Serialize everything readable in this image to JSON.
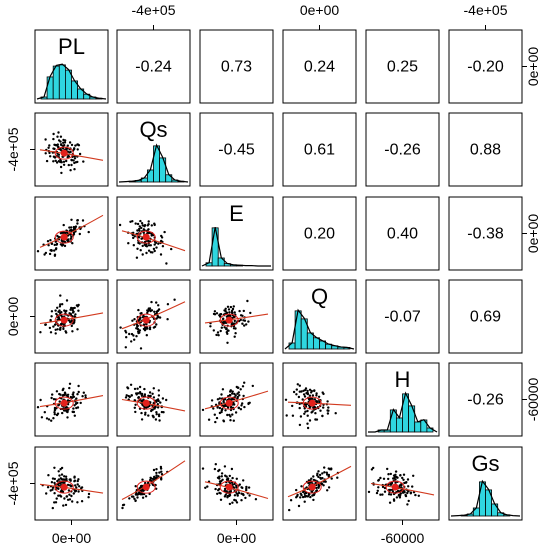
{
  "chart_data": {
    "type": "scatter",
    "layout": "pairs-panel matrix (histograms on diagonal, scatter plots with loess lines below, correlation coefficients above)",
    "variables": [
      "PL",
      "Qs",
      "E",
      "Q",
      "H",
      "Gs"
    ],
    "correlations": [
      {
        "row": 0,
        "col": 1,
        "value": "-0.24"
      },
      {
        "row": 0,
        "col": 2,
        "value": "0.73"
      },
      {
        "row": 0,
        "col": 3,
        "value": "0.24"
      },
      {
        "row": 0,
        "col": 4,
        "value": "0.25"
      },
      {
        "row": 0,
        "col": 5,
        "value": "-0.20"
      },
      {
        "row": 1,
        "col": 2,
        "value": "-0.45"
      },
      {
        "row": 1,
        "col": 3,
        "value": "0.61"
      },
      {
        "row": 1,
        "col": 4,
        "value": "-0.26"
      },
      {
        "row": 1,
        "col": 5,
        "value": "0.88"
      },
      {
        "row": 2,
        "col": 3,
        "value": "0.20"
      },
      {
        "row": 2,
        "col": 4,
        "value": "0.40"
      },
      {
        "row": 2,
        "col": 5,
        "value": "-0.38"
      },
      {
        "row": 3,
        "col": 4,
        "value": "-0.07"
      },
      {
        "row": 3,
        "col": 5,
        "value": "0.69"
      },
      {
        "row": 4,
        "col": 5,
        "value": "-0.26"
      }
    ],
    "histograms": [
      {
        "variable": "PL",
        "bars": [
          0.05,
          0.55,
          0.82,
          0.85,
          0.72,
          0.45,
          0.25,
          0.12,
          0.05,
          0.02
        ]
      },
      {
        "variable": "Qs",
        "bars": [
          0.01,
          0.02,
          0.04,
          0.1,
          0.3,
          0.9,
          0.6,
          0.18,
          0.05,
          0.02
        ]
      },
      {
        "variable": "E",
        "bars": [
          0.08,
          0.95,
          0.2,
          0.06,
          0.03,
          0.02,
          0.01,
          0.01,
          0.0,
          0.0
        ]
      },
      {
        "variable": "Q",
        "bars": [
          0.15,
          0.95,
          0.75,
          0.4,
          0.28,
          0.2,
          0.12,
          0.08,
          0.05,
          0.04
        ]
      },
      {
        "variable": "H",
        "bars": [
          0.0,
          0.05,
          0.05,
          0.55,
          0.35,
          0.95,
          0.65,
          0.25,
          0.3,
          0.1
        ]
      },
      {
        "variable": "Gs",
        "bars": [
          0.01,
          0.02,
          0.05,
          0.2,
          0.85,
          0.65,
          0.3,
          0.08,
          0.03,
          0.01
        ]
      }
    ],
    "axis_labels": {
      "top": [
        {
          "col": 1,
          "text": "-4e+05"
        },
        {
          "col": 3,
          "text": "0e+00"
        },
        {
          "col": 5,
          "text": "-4e+05"
        }
      ],
      "bottom": [
        {
          "col": 0,
          "text": "0e+00"
        },
        {
          "col": 2,
          "text": "0e+00"
        },
        {
          "col": 4,
          "text": "-60000"
        }
      ],
      "left": [
        {
          "row": 1,
          "text": "-4e+05"
        },
        {
          "row": 3,
          "text": "0e+00"
        },
        {
          "row": 5,
          "text": "-4e+05"
        }
      ],
      "right": [
        {
          "row": 0,
          "text": "0e+00"
        },
        {
          "row": 2,
          "text": "0e+00"
        },
        {
          "row": 4,
          "text": "-60000"
        }
      ]
    },
    "point_color": "#000000",
    "smoother_color": "#d23a1f",
    "histogram_fill": "#2fd6e0",
    "centroid_color": "#e2211c"
  }
}
